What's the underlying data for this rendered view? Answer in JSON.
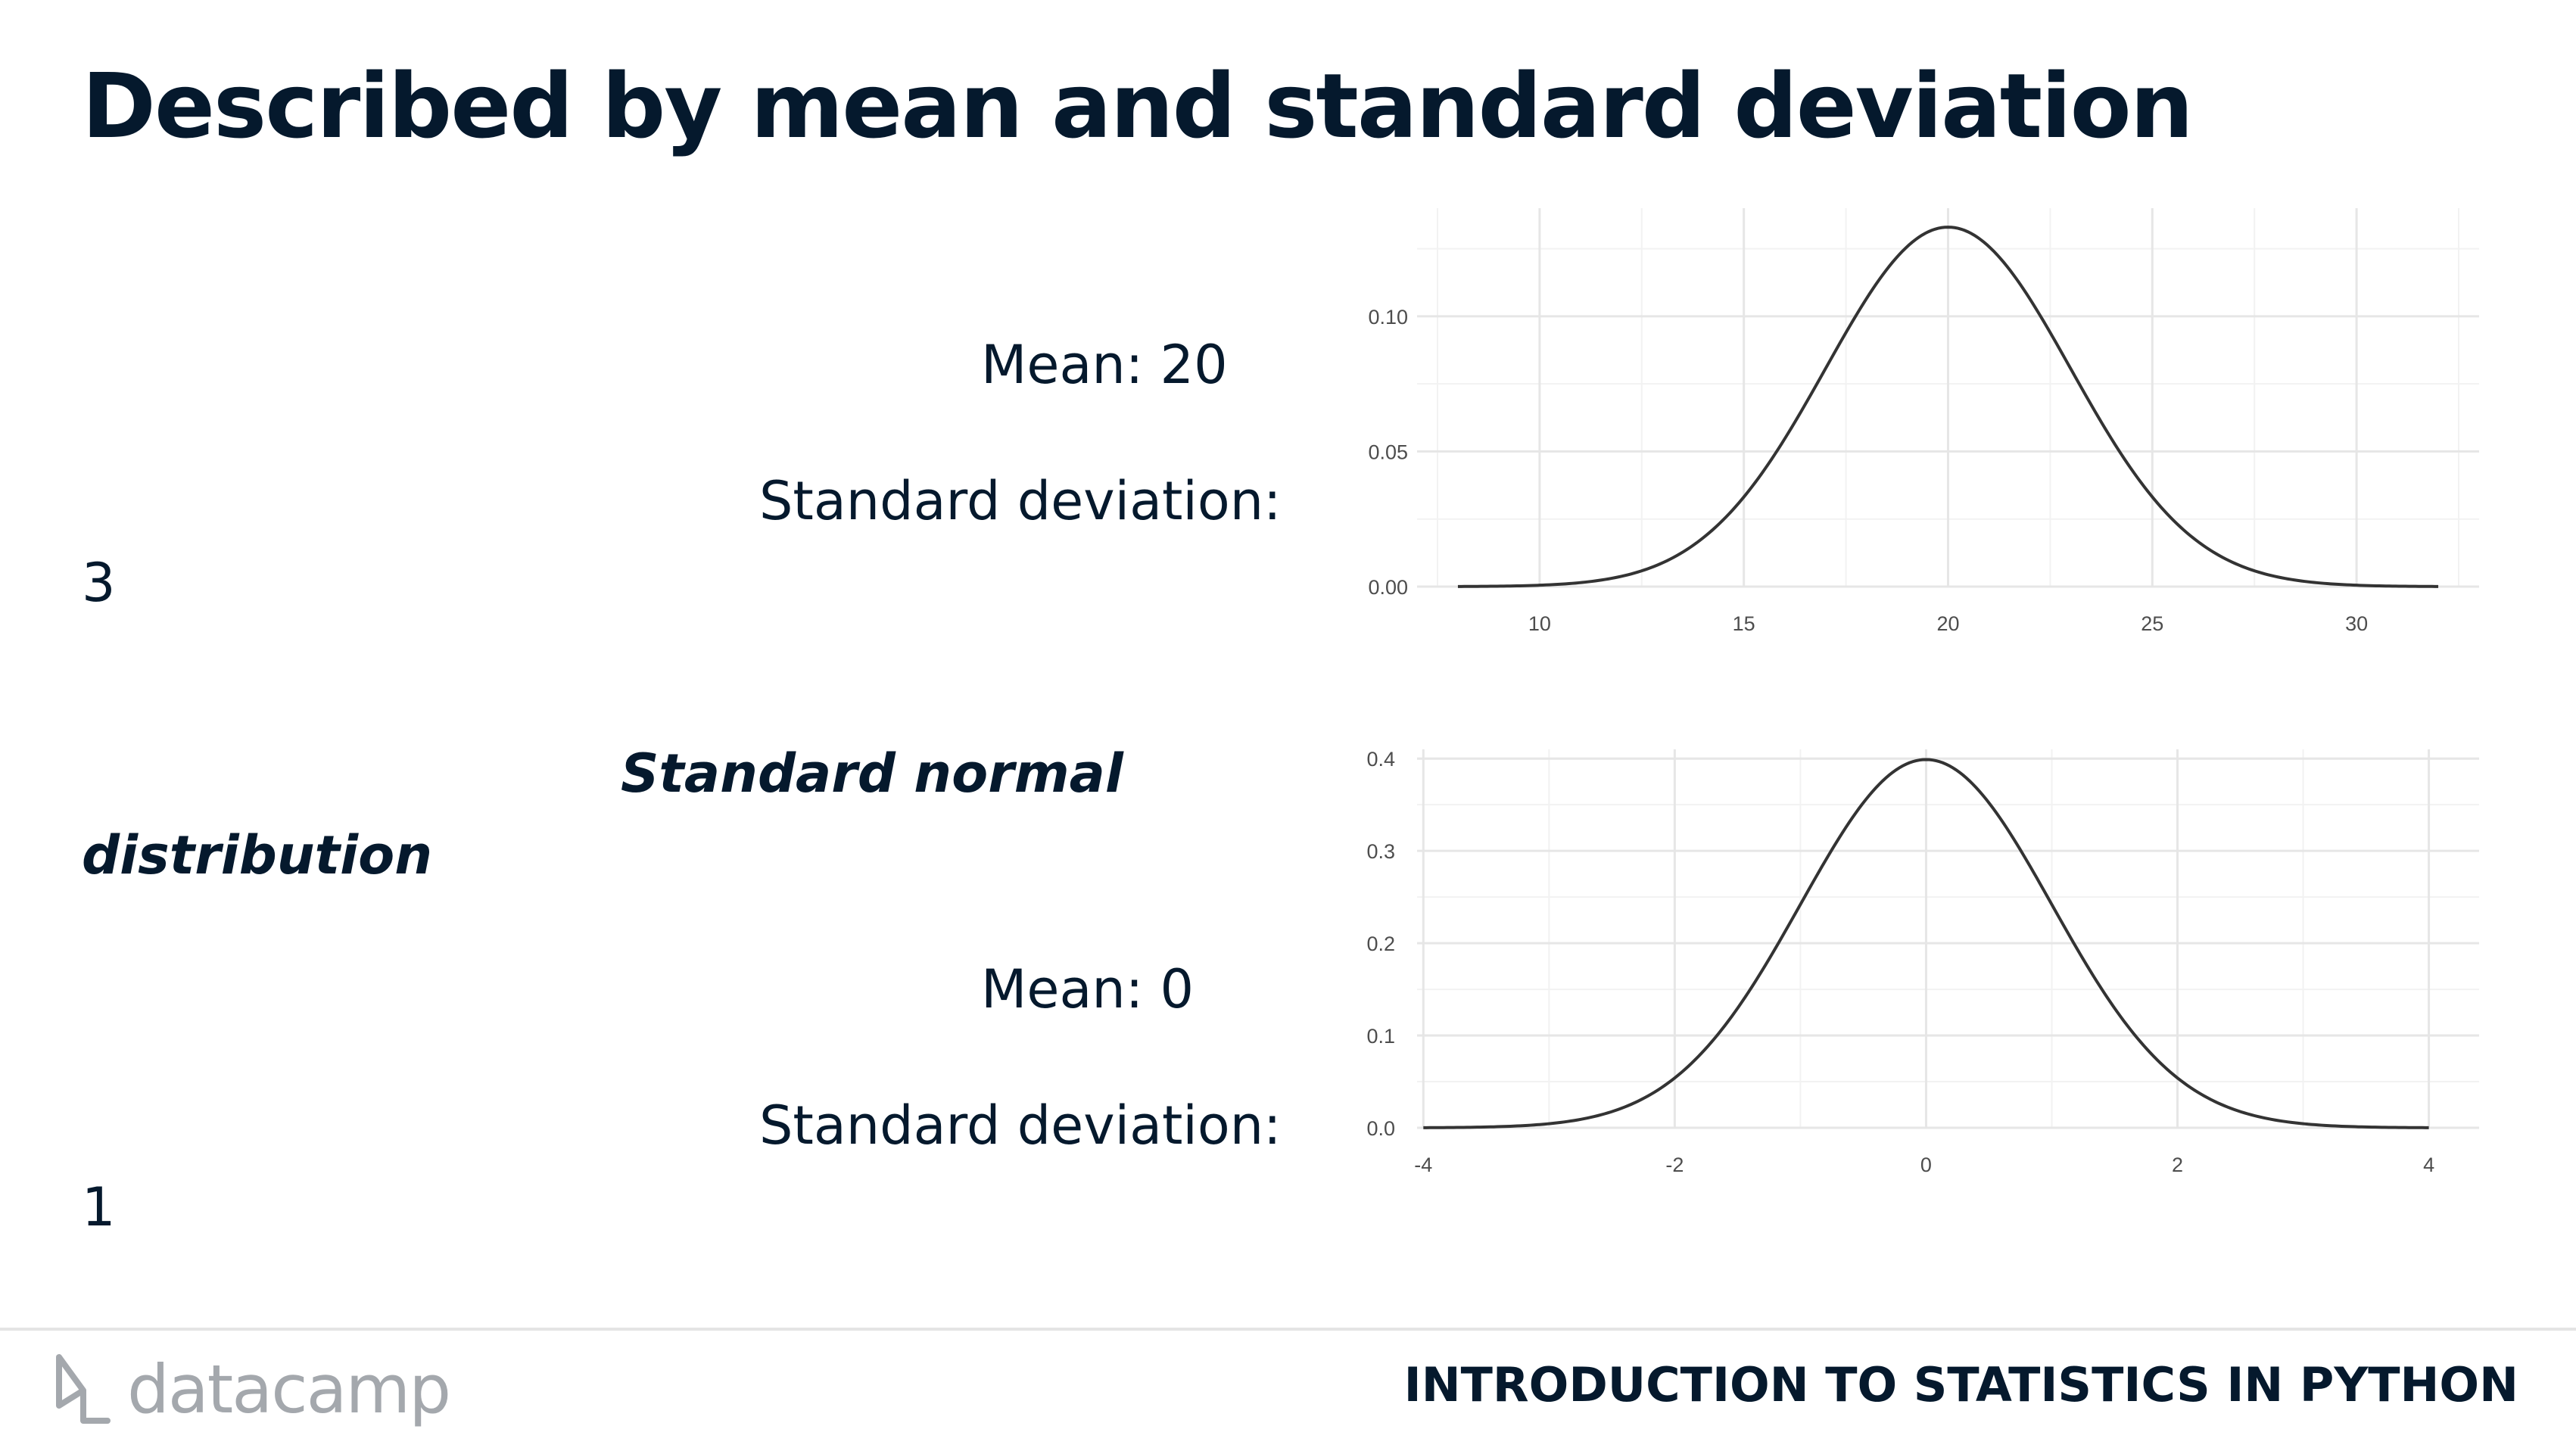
{
  "slide": {
    "title": "Described by mean and standard deviation"
  },
  "panels": [
    {
      "mean_text": "Mean: 20",
      "sd_text": "Standard deviation:",
      "sd_value": "3"
    },
    {
      "label_line1": "Standard normal",
      "label_line2": "distribution",
      "mean_text": "Mean: 0",
      "sd_text": "Standard deviation:",
      "sd_value": "1"
    }
  ],
  "chart_data": [
    {
      "type": "line",
      "distribution": "normal",
      "mean": 20,
      "sd": 3,
      "x_range": [
        8,
        32
      ],
      "xlim": [
        7,
        33
      ],
      "ylim": [
        0,
        0.14
      ],
      "x_ticks": [
        10,
        15,
        20,
        25,
        30
      ],
      "x_tick_labels": [
        "10",
        "15",
        "20",
        "25",
        "30"
      ],
      "y_ticks": [
        0.0,
        0.05,
        0.1
      ],
      "y_tick_labels": [
        "0.00",
        "0.05",
        "0.10"
      ],
      "peak": {
        "x": 20,
        "y": 0.133
      },
      "grid": true,
      "legend": "none"
    },
    {
      "type": "line",
      "distribution": "normal",
      "mean": 0,
      "sd": 1,
      "x_range": [
        -4,
        4
      ],
      "xlim": [
        -4.05,
        4.4
      ],
      "ylim": [
        0,
        0.41
      ],
      "x_ticks": [
        -4,
        -2,
        0,
        2,
        4
      ],
      "x_tick_labels": [
        "-4",
        "-2",
        "0",
        "2",
        "4"
      ],
      "y_ticks": [
        0.0,
        0.1,
        0.2,
        0.3,
        0.4
      ],
      "y_tick_labels": [
        "0.0",
        "0.1",
        "0.2",
        "0.3",
        "0.4"
      ],
      "peak": {
        "x": 0,
        "y": 0.399
      },
      "grid": true,
      "legend": "none"
    }
  ],
  "footer": {
    "logo_text": "datacamp",
    "logo_icon": "datacamp-logo-icon",
    "course_title": "INTRODUCTION TO STATISTICS IN PYTHON"
  },
  "colors": {
    "text": "#05192d",
    "curve": "#333333",
    "grid": "#e6e6e6",
    "logo": "#a4a8ad"
  }
}
